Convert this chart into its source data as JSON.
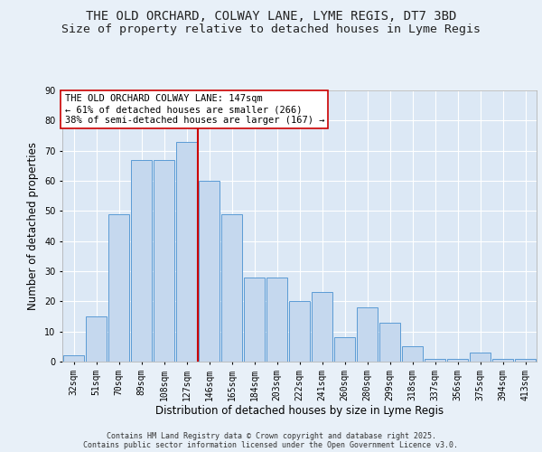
{
  "title_line1": "THE OLD ORCHARD, COLWAY LANE, LYME REGIS, DT7 3BD",
  "title_line2": "Size of property relative to detached houses in Lyme Regis",
  "xlabel": "Distribution of detached houses by size in Lyme Regis",
  "ylabel": "Number of detached properties",
  "bar_values": [
    2,
    15,
    49,
    67,
    67,
    73,
    60,
    49,
    28,
    28,
    20,
    23,
    8,
    18,
    13,
    5,
    1,
    1,
    3,
    1,
    1
  ],
  "tick_labels": [
    "32sqm",
    "51sqm",
    "70sqm",
    "89sqm",
    "108sqm",
    "127sqm",
    "146sqm",
    "165sqm",
    "184sqm",
    "203sqm",
    "222sqm",
    "241sqm",
    "260sqm",
    "280sqm",
    "299sqm",
    "318sqm",
    "337sqm",
    "356sqm",
    "375sqm",
    "394sqm",
    "413sqm"
  ],
  "bar_color": "#c5d8ee",
  "bar_edge_color": "#5b9bd5",
  "bg_color": "#dce8f5",
  "fig_bg_color": "#e8f0f8",
  "grid_color": "#ffffff",
  "vline_x": 6,
  "vline_color": "#cc0000",
  "annotation_text": "THE OLD ORCHARD COLWAY LANE: 147sqm\n← 61% of detached houses are smaller (266)\n38% of semi-detached houses are larger (167) →",
  "annotation_box_color": "#ffffff",
  "annotation_box_edge": "#cc0000",
  "ylim": [
    0,
    90
  ],
  "yticks": [
    0,
    10,
    20,
    30,
    40,
    50,
    60,
    70,
    80,
    90
  ],
  "footer_text": "Contains HM Land Registry data © Crown copyright and database right 2025.\nContains public sector information licensed under the Open Government Licence v3.0.",
  "title_fontsize": 10,
  "subtitle_fontsize": 9.5,
  "axis_label_fontsize": 8.5,
  "tick_fontsize": 7,
  "annotation_fontsize": 7.5,
  "footer_fontsize": 6
}
